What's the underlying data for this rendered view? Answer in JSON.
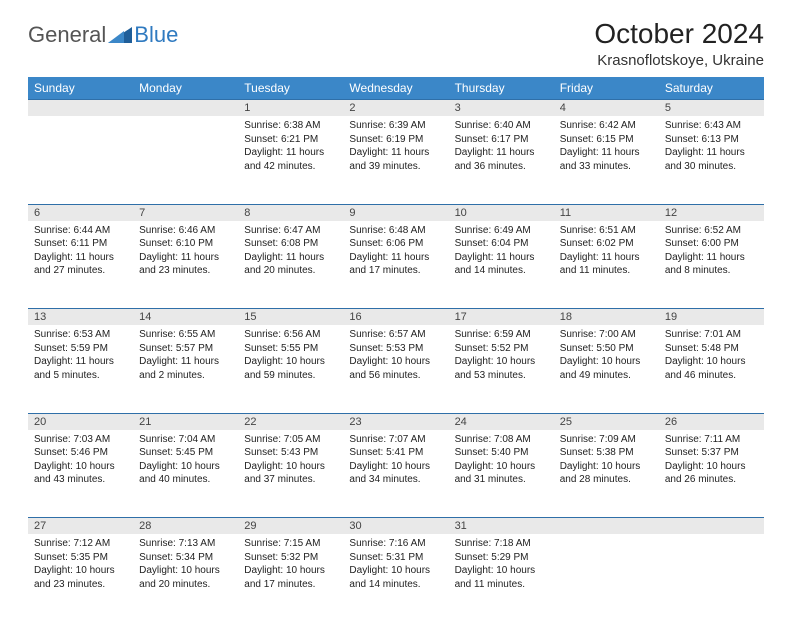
{
  "brand": {
    "word1": "General",
    "word2": "Blue"
  },
  "title": "October 2024",
  "location": "Krasnoflotskoye, Ukraine",
  "colors": {
    "header_bg": "#3b87c8",
    "header_text": "#ffffff",
    "daynum_bg": "#e9e9e9",
    "border": "#2f6fa8",
    "brand_gray": "#555555",
    "brand_blue": "#2f7ac0"
  },
  "day_headers": [
    "Sunday",
    "Monday",
    "Tuesday",
    "Wednesday",
    "Thursday",
    "Friday",
    "Saturday"
  ],
  "weeks": [
    {
      "nums": [
        "",
        "",
        "1",
        "2",
        "3",
        "4",
        "5"
      ],
      "cells": [
        {},
        {},
        {
          "sunrise": "Sunrise: 6:38 AM",
          "sunset": "Sunset: 6:21 PM",
          "day1": "Daylight: 11 hours",
          "day2": "and 42 minutes."
        },
        {
          "sunrise": "Sunrise: 6:39 AM",
          "sunset": "Sunset: 6:19 PM",
          "day1": "Daylight: 11 hours",
          "day2": "and 39 minutes."
        },
        {
          "sunrise": "Sunrise: 6:40 AM",
          "sunset": "Sunset: 6:17 PM",
          "day1": "Daylight: 11 hours",
          "day2": "and 36 minutes."
        },
        {
          "sunrise": "Sunrise: 6:42 AM",
          "sunset": "Sunset: 6:15 PM",
          "day1": "Daylight: 11 hours",
          "day2": "and 33 minutes."
        },
        {
          "sunrise": "Sunrise: 6:43 AM",
          "sunset": "Sunset: 6:13 PM",
          "day1": "Daylight: 11 hours",
          "day2": "and 30 minutes."
        }
      ]
    },
    {
      "nums": [
        "6",
        "7",
        "8",
        "9",
        "10",
        "11",
        "12"
      ],
      "cells": [
        {
          "sunrise": "Sunrise: 6:44 AM",
          "sunset": "Sunset: 6:11 PM",
          "day1": "Daylight: 11 hours",
          "day2": "and 27 minutes."
        },
        {
          "sunrise": "Sunrise: 6:46 AM",
          "sunset": "Sunset: 6:10 PM",
          "day1": "Daylight: 11 hours",
          "day2": "and 23 minutes."
        },
        {
          "sunrise": "Sunrise: 6:47 AM",
          "sunset": "Sunset: 6:08 PM",
          "day1": "Daylight: 11 hours",
          "day2": "and 20 minutes."
        },
        {
          "sunrise": "Sunrise: 6:48 AM",
          "sunset": "Sunset: 6:06 PM",
          "day1": "Daylight: 11 hours",
          "day2": "and 17 minutes."
        },
        {
          "sunrise": "Sunrise: 6:49 AM",
          "sunset": "Sunset: 6:04 PM",
          "day1": "Daylight: 11 hours",
          "day2": "and 14 minutes."
        },
        {
          "sunrise": "Sunrise: 6:51 AM",
          "sunset": "Sunset: 6:02 PM",
          "day1": "Daylight: 11 hours",
          "day2": "and 11 minutes."
        },
        {
          "sunrise": "Sunrise: 6:52 AM",
          "sunset": "Sunset: 6:00 PM",
          "day1": "Daylight: 11 hours",
          "day2": "and 8 minutes."
        }
      ]
    },
    {
      "nums": [
        "13",
        "14",
        "15",
        "16",
        "17",
        "18",
        "19"
      ],
      "cells": [
        {
          "sunrise": "Sunrise: 6:53 AM",
          "sunset": "Sunset: 5:59 PM",
          "day1": "Daylight: 11 hours",
          "day2": "and 5 minutes."
        },
        {
          "sunrise": "Sunrise: 6:55 AM",
          "sunset": "Sunset: 5:57 PM",
          "day1": "Daylight: 11 hours",
          "day2": "and 2 minutes."
        },
        {
          "sunrise": "Sunrise: 6:56 AM",
          "sunset": "Sunset: 5:55 PM",
          "day1": "Daylight: 10 hours",
          "day2": "and 59 minutes."
        },
        {
          "sunrise": "Sunrise: 6:57 AM",
          "sunset": "Sunset: 5:53 PM",
          "day1": "Daylight: 10 hours",
          "day2": "and 56 minutes."
        },
        {
          "sunrise": "Sunrise: 6:59 AM",
          "sunset": "Sunset: 5:52 PM",
          "day1": "Daylight: 10 hours",
          "day2": "and 53 minutes."
        },
        {
          "sunrise": "Sunrise: 7:00 AM",
          "sunset": "Sunset: 5:50 PM",
          "day1": "Daylight: 10 hours",
          "day2": "and 49 minutes."
        },
        {
          "sunrise": "Sunrise: 7:01 AM",
          "sunset": "Sunset: 5:48 PM",
          "day1": "Daylight: 10 hours",
          "day2": "and 46 minutes."
        }
      ]
    },
    {
      "nums": [
        "20",
        "21",
        "22",
        "23",
        "24",
        "25",
        "26"
      ],
      "cells": [
        {
          "sunrise": "Sunrise: 7:03 AM",
          "sunset": "Sunset: 5:46 PM",
          "day1": "Daylight: 10 hours",
          "day2": "and 43 minutes."
        },
        {
          "sunrise": "Sunrise: 7:04 AM",
          "sunset": "Sunset: 5:45 PM",
          "day1": "Daylight: 10 hours",
          "day2": "and 40 minutes."
        },
        {
          "sunrise": "Sunrise: 7:05 AM",
          "sunset": "Sunset: 5:43 PM",
          "day1": "Daylight: 10 hours",
          "day2": "and 37 minutes."
        },
        {
          "sunrise": "Sunrise: 7:07 AM",
          "sunset": "Sunset: 5:41 PM",
          "day1": "Daylight: 10 hours",
          "day2": "and 34 minutes."
        },
        {
          "sunrise": "Sunrise: 7:08 AM",
          "sunset": "Sunset: 5:40 PM",
          "day1": "Daylight: 10 hours",
          "day2": "and 31 minutes."
        },
        {
          "sunrise": "Sunrise: 7:09 AM",
          "sunset": "Sunset: 5:38 PM",
          "day1": "Daylight: 10 hours",
          "day2": "and 28 minutes."
        },
        {
          "sunrise": "Sunrise: 7:11 AM",
          "sunset": "Sunset: 5:37 PM",
          "day1": "Daylight: 10 hours",
          "day2": "and 26 minutes."
        }
      ]
    },
    {
      "nums": [
        "27",
        "28",
        "29",
        "30",
        "31",
        "",
        ""
      ],
      "cells": [
        {
          "sunrise": "Sunrise: 7:12 AM",
          "sunset": "Sunset: 5:35 PM",
          "day1": "Daylight: 10 hours",
          "day2": "and 23 minutes."
        },
        {
          "sunrise": "Sunrise: 7:13 AM",
          "sunset": "Sunset: 5:34 PM",
          "day1": "Daylight: 10 hours",
          "day2": "and 20 minutes."
        },
        {
          "sunrise": "Sunrise: 7:15 AM",
          "sunset": "Sunset: 5:32 PM",
          "day1": "Daylight: 10 hours",
          "day2": "and 17 minutes."
        },
        {
          "sunrise": "Sunrise: 7:16 AM",
          "sunset": "Sunset: 5:31 PM",
          "day1": "Daylight: 10 hours",
          "day2": "and 14 minutes."
        },
        {
          "sunrise": "Sunrise: 7:18 AM",
          "sunset": "Sunset: 5:29 PM",
          "day1": "Daylight: 10 hours",
          "day2": "and 11 minutes."
        },
        {},
        {}
      ]
    }
  ]
}
